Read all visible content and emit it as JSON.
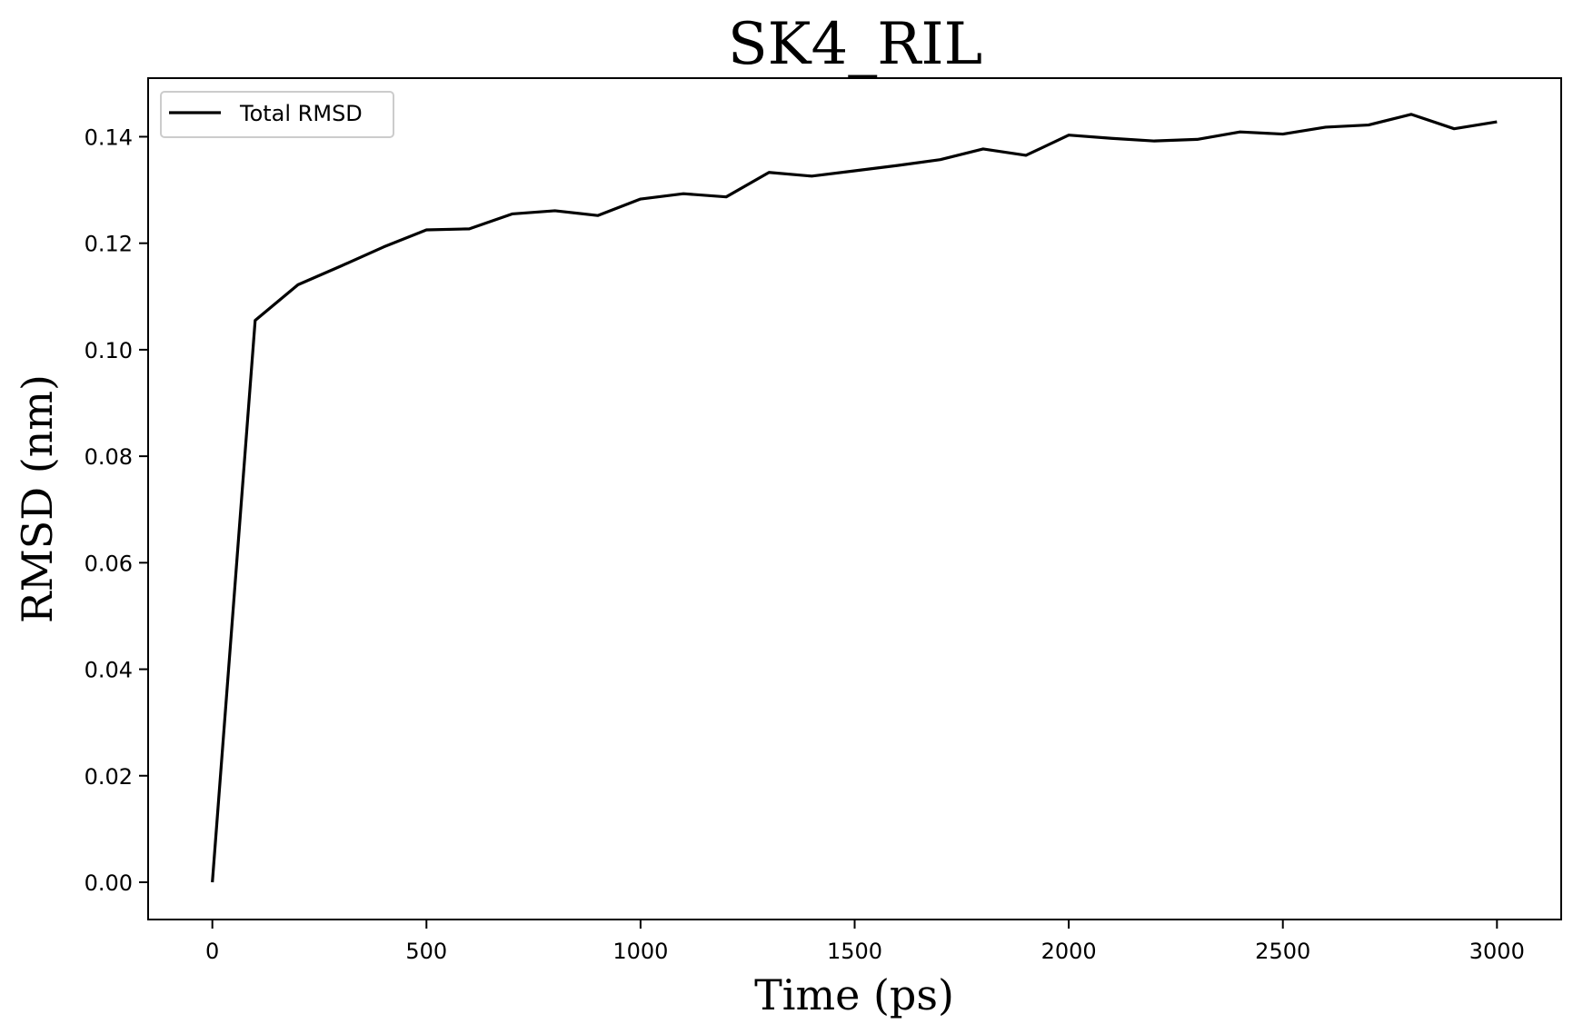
{
  "chart_data": {
    "type": "line",
    "title": "SK4_RIL",
    "xlabel": "Time (ps)",
    "ylabel": "RMSD (nm)",
    "xlim": [
      -150,
      3150
    ],
    "ylim": [
      -0.007,
      0.151
    ],
    "xticks": [
      0,
      500,
      1000,
      1500,
      2000,
      2500,
      3000
    ],
    "xtick_labels": [
      "0",
      "500",
      "1000",
      "1500",
      "2000",
      "2500",
      "3000"
    ],
    "yticks": [
      0.0,
      0.02,
      0.04,
      0.06,
      0.08,
      0.1,
      0.12,
      0.14
    ],
    "ytick_labels": [
      "0.00",
      "0.02",
      "0.04",
      "0.06",
      "0.08",
      "0.10",
      "0.12",
      "0.14"
    ],
    "grid": false,
    "legend": {
      "position": "top-left"
    },
    "series": [
      {
        "name": "Total RMSD",
        "color": "#000000",
        "x": [
          0,
          100,
          200,
          300,
          400,
          500,
          600,
          700,
          800,
          900,
          1000,
          1100,
          1200,
          1300,
          1400,
          1500,
          1600,
          1700,
          1800,
          1900,
          2000,
          2100,
          2200,
          2300,
          2400,
          2500,
          2600,
          2700,
          2800,
          2900,
          3000
        ],
        "y": [
          0.0,
          0.1055,
          0.1122,
          0.1157,
          0.1193,
          0.1225,
          0.1227,
          0.1255,
          0.1261,
          0.1252,
          0.1283,
          0.1293,
          0.1287,
          0.1333,
          0.1326,
          0.1336,
          0.1346,
          0.1357,
          0.1377,
          0.1365,
          0.1403,
          0.1397,
          0.1392,
          0.1395,
          0.1409,
          0.1405,
          0.1418,
          0.1422,
          0.1442,
          0.1415,
          0.1428
        ]
      }
    ]
  }
}
